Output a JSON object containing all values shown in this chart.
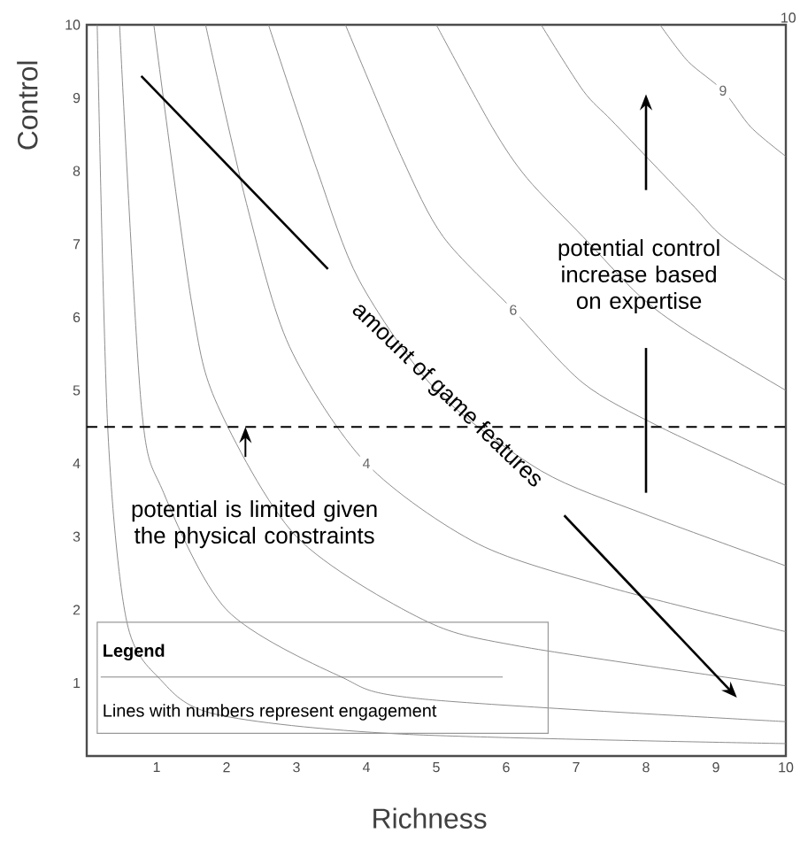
{
  "chart_data": {
    "type": "line",
    "xlabel": "Richness",
    "ylabel": "Control",
    "xlim": [
      0,
      10
    ],
    "ylim": [
      0,
      10
    ],
    "xticks": [
      1,
      2,
      3,
      4,
      5,
      6,
      7,
      8,
      9,
      10
    ],
    "yticks": [
      1,
      2,
      3,
      4,
      5,
      6,
      7,
      8,
      9,
      10
    ],
    "grid": false,
    "marker": "none",
    "line_style": "solid",
    "series": [
      {
        "color": "#808080",
        "x": [
          0.15,
          0.3,
          0.57,
          1.05,
          1.85,
          4.5,
          10
        ],
        "values": [
          10,
          4.5,
          1.85,
          1.05,
          0.57,
          0.3,
          0.17
        ]
      },
      {
        "color": "#808080",
        "x": [
          0.47,
          0.78,
          1.1,
          2,
          3.6,
          4.8,
          10
        ],
        "values": [
          10,
          4.8,
          3.6,
          2,
          1.1,
          0.78,
          0.47
        ]
      },
      {
        "color": "#808080",
        "x": [
          0.96,
          1.5,
          1.87,
          3,
          4.8,
          6.2,
          10
        ],
        "values": [
          10,
          6.2,
          4.8,
          3,
          1.87,
          1.5,
          0.96
        ]
      },
      {
        "name": "4",
        "color": "#808080",
        "x": [
          1.7,
          2.3,
          2.9,
          4,
          5.6,
          7.5,
          10
        ],
        "values": [
          10,
          7.5,
          5.6,
          4,
          2.9,
          2.3,
          1.7
        ]
      },
      {
        "color": "#808080",
        "x": [
          2.6,
          3.3,
          3.9,
          5,
          6.5,
          8,
          10
        ],
        "values": [
          10,
          8,
          6.5,
          5,
          3.9,
          3.3,
          2.6
        ]
      },
      {
        "name": "6",
        "color": "#808080",
        "x": [
          3.7,
          4.5,
          5.1,
          6.1,
          7.1,
          8.2,
          10
        ],
        "values": [
          10,
          8.2,
          7.1,
          6.1,
          5.1,
          4.5,
          3.7
        ]
      },
      {
        "color": "#808080",
        "x": [
          5,
          5.8,
          6.3,
          7.1,
          7.9,
          8.6,
          10
        ],
        "values": [
          10,
          8.6,
          7.9,
          7.1,
          6.3,
          5.8,
          5
        ]
      },
      {
        "color": "#808080",
        "x": [
          6.5,
          7.1,
          7.5,
          8.1,
          8.7,
          9.1,
          10
        ],
        "values": [
          10,
          9.1,
          8.7,
          8.1,
          7.5,
          7.1,
          6.5
        ]
      },
      {
        "name": "9",
        "color": "#808080",
        "x": [
          8.2,
          8.6,
          9.1,
          9.5,
          10
        ],
        "values": [
          10,
          9.5,
          9.1,
          8.6,
          8.2
        ]
      }
    ],
    "ref_lines": [
      {
        "axis": "y",
        "value": 4.5,
        "line_style": "dashed",
        "color": "#000000"
      }
    ],
    "annotations": [
      "amount of game features",
      "potential control increase based on expertise",
      "potential is limited given the physical constraints",
      "Legend",
      "Lines with numbers represent engagement",
      "10"
    ]
  }
}
